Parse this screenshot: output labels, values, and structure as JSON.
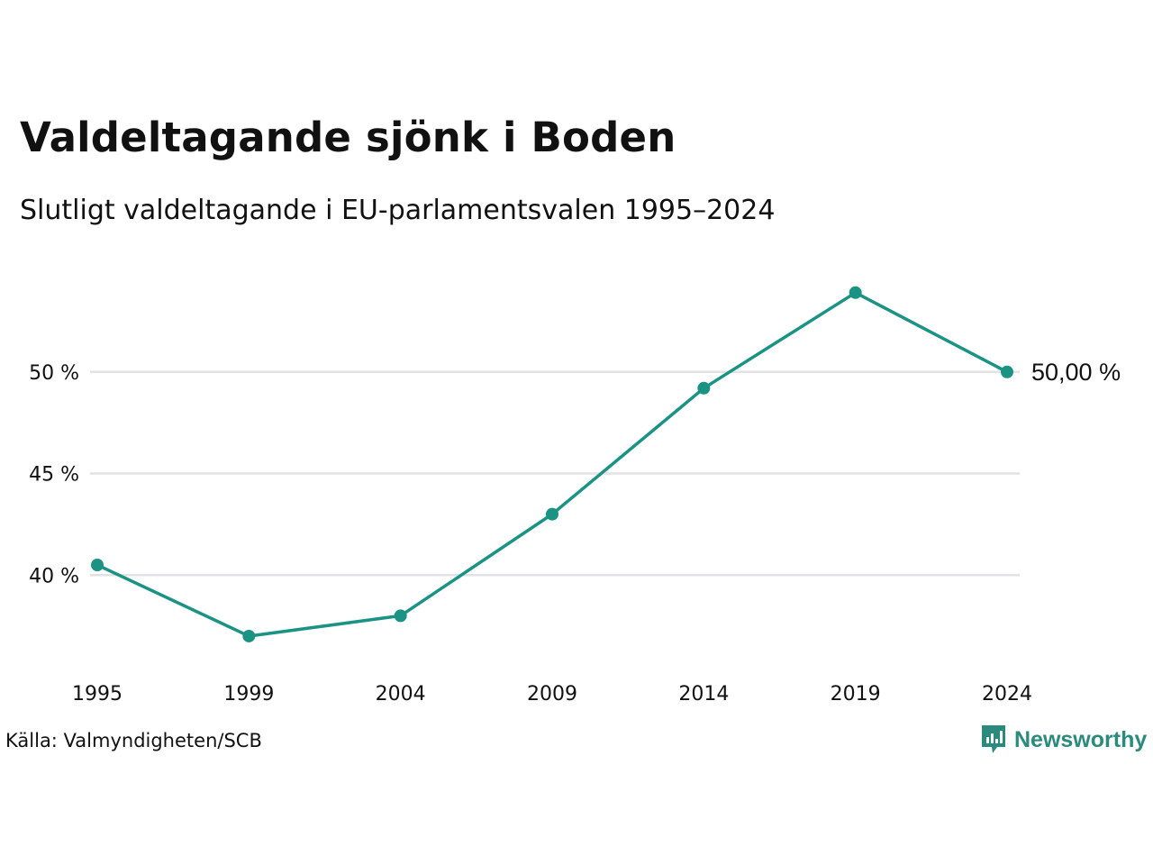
{
  "title": "Valdeltagande sjönk i Boden",
  "subtitle": "Slutligt valdeltagande i EU-parlamentsvalen 1995–2024",
  "source": "Källa: Valmyndigheten/SCB",
  "brand": {
    "name": "Newsworthy",
    "color": "#2a8a7c",
    "icon": "newsworthy-logo-icon"
  },
  "chart_data": {
    "type": "line",
    "title": "Valdeltagande sjönk i Boden",
    "subtitle": "Slutligt valdeltagande i EU-parlamentsvalen 1995–2024",
    "categories": [
      "1995",
      "1999",
      "2004",
      "2009",
      "2014",
      "2019",
      "2024"
    ],
    "series": [
      {
        "values": [
          40.5,
          37.0,
          38.0,
          43.0,
          49.2,
          53.9,
          50.0
        ],
        "color": "#1a9384"
      }
    ],
    "y_ticks": [
      40,
      45,
      50
    ],
    "y_tick_labels": [
      "40 %",
      "45 %",
      "50 %"
    ],
    "ylim": [
      36.2,
      55.0
    ],
    "grid": true,
    "end_label": "50,00 %",
    "gridline_color": "#e2e2e6"
  }
}
